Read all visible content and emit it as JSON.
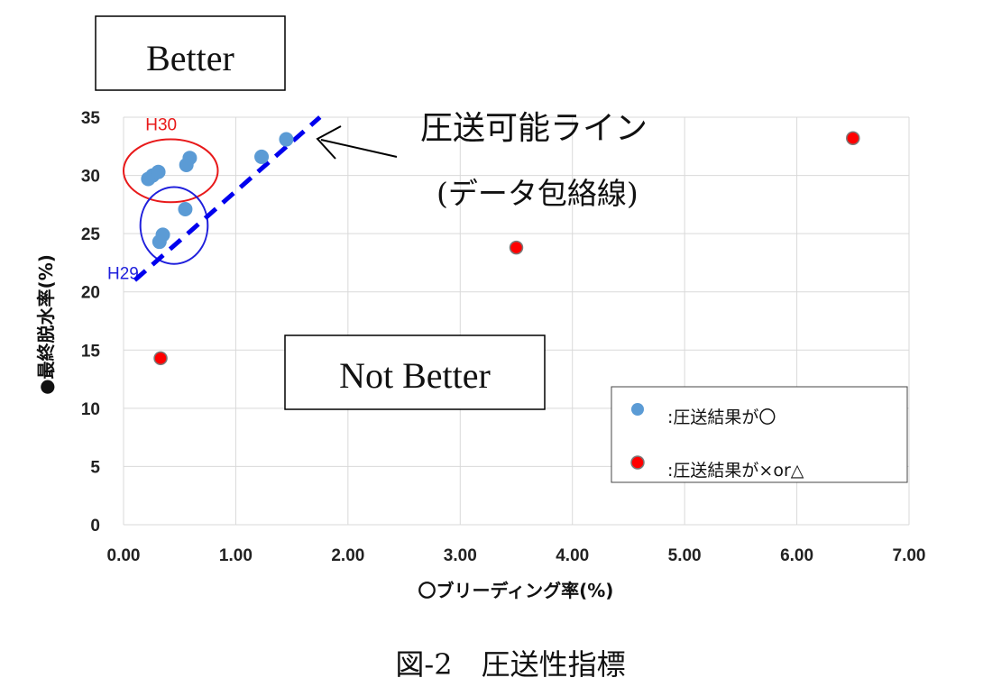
{
  "chart_data": {
    "type": "scatter",
    "title": "",
    "xlabel": "〇ブリーディング率(%)",
    "ylabel": "●最終脱水率(%)",
    "xlim": [
      0,
      7
    ],
    "ylim": [
      0,
      35
    ],
    "x_ticks": [
      "0.00",
      "1.00",
      "2.00",
      "3.00",
      "4.00",
      "5.00",
      "6.00",
      "7.00"
    ],
    "y_ticks": [
      "0",
      "5",
      "10",
      "15",
      "20",
      "25",
      "30",
      "35"
    ],
    "grid": true,
    "legend_position": "bottom-right",
    "series": [
      {
        "name": ":圧送結果が〇",
        "color": "#5b9bd5",
        "points": [
          {
            "x": 0.22,
            "y": 29.7
          },
          {
            "x": 0.26,
            "y": 30.0
          },
          {
            "x": 0.31,
            "y": 30.3
          },
          {
            "x": 0.56,
            "y": 30.9
          },
          {
            "x": 0.59,
            "y": 31.5
          },
          {
            "x": 1.23,
            "y": 31.6
          },
          {
            "x": 1.45,
            "y": 33.1
          },
          {
            "x": 0.55,
            "y": 27.1
          },
          {
            "x": 0.35,
            "y": 24.9
          },
          {
            "x": 0.32,
            "y": 24.3
          }
        ]
      },
      {
        "name": ":圧送結果が×or△",
        "color": "#ff0000",
        "points": [
          {
            "x": 0.33,
            "y": 14.3
          },
          {
            "x": 3.5,
            "y": 23.8
          },
          {
            "x": 6.5,
            "y": 33.2
          }
        ]
      }
    ],
    "envelope_line": {
      "x": [
        0.1,
        1.75
      ],
      "y": [
        21.0,
        35.0
      ],
      "color": "#0000ee"
    },
    "groups": [
      {
        "label": "H30",
        "color": "#e8191a",
        "cx": 0.42,
        "cy": 30.4,
        "rx": 0.42,
        "ry": 2.7
      },
      {
        "label": "H29",
        "color": "#1f1fdc",
        "cx": 0.45,
        "cy": 25.7,
        "rx": 0.3,
        "ry": 3.3
      }
    ]
  },
  "labels": {
    "better": "Better",
    "not_better": "Not Better",
    "line_label_1": "圧送可能ライン",
    "line_label_2": "(データ包絡線)",
    "caption": "図-2　圧送性指標"
  }
}
